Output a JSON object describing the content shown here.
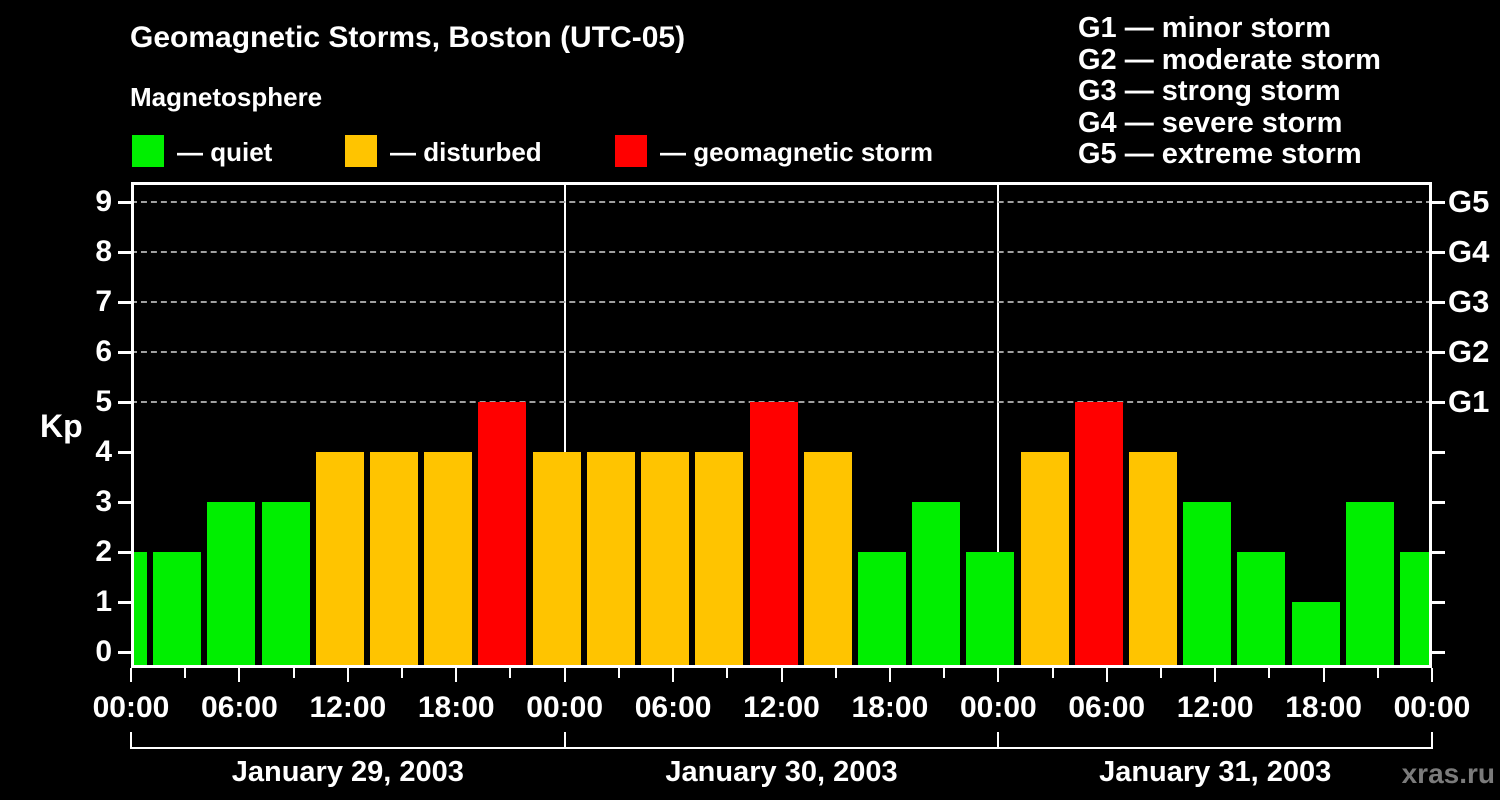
{
  "title": "Geomagnetic Storms, Boston (UTC-05)",
  "subtitle": "Magnetosphere",
  "legend": {
    "items": [
      {
        "name": "quiet",
        "label": "— quiet",
        "color": "#00ef00"
      },
      {
        "name": "disturbed",
        "label": "— disturbed",
        "color": "#ffc400"
      },
      {
        "name": "storm",
        "label": "— geomagnetic storm",
        "color": "#ff0000"
      }
    ]
  },
  "storm_scale": {
    "lines": [
      "G1 — minor storm",
      "G2 — moderate storm",
      "G3 — strong storm",
      "G4 — severe storm",
      "G5 — extreme storm"
    ]
  },
  "watermark": "xras.ru",
  "chart_data": {
    "type": "bar",
    "title": "Geomagnetic Storms, Boston (UTC-05)",
    "ylabel": "Kp",
    "ylim": [
      0,
      9
    ],
    "interval_hours": 3,
    "grid": "dashed horizontal lines at Kp 5-9 only",
    "legend_position": "top",
    "y_ticks": [
      "0",
      "1",
      "2",
      "3",
      "4",
      "5",
      "6",
      "7",
      "8",
      "9"
    ],
    "gridline_levels": [
      5,
      6,
      7,
      8,
      9
    ],
    "g_labels": [
      {
        "label": "G1",
        "kp": 5
      },
      {
        "label": "G2",
        "kp": 6
      },
      {
        "label": "G3",
        "kp": 7
      },
      {
        "label": "G4",
        "kp": 8
      },
      {
        "label": "G5",
        "kp": 9
      }
    ],
    "x_tick_labels": [
      "00:00",
      "06:00",
      "12:00",
      "18:00",
      "00:00",
      "06:00",
      "12:00",
      "18:00",
      "00:00",
      "06:00",
      "12:00",
      "18:00",
      "00:00"
    ],
    "colors": {
      "quiet": "#00ef00",
      "disturbed": "#ffc400",
      "storm": "#ff0000"
    },
    "thresholds": {
      "disturbed_min": 4,
      "storm_min": 5
    },
    "days": [
      {
        "date": "January 29, 2003",
        "times": [
          "00:00",
          "03:00",
          "06:00",
          "09:00",
          "12:00",
          "15:00",
          "18:00",
          "21:00"
        ],
        "kp_values": [
          2,
          2,
          3,
          3,
          4,
          4,
          4,
          5
        ]
      },
      {
        "date": "January 30, 2003",
        "times": [
          "00:00",
          "03:00",
          "06:00",
          "09:00",
          "12:00",
          "15:00",
          "18:00",
          "21:00"
        ],
        "kp_values": [
          4,
          4,
          4,
          4,
          5,
          4,
          2,
          3
        ]
      },
      {
        "date": "January 31, 2003",
        "times": [
          "00:00",
          "03:00",
          "06:00",
          "09:00",
          "12:00",
          "15:00",
          "18:00",
          "21:00"
        ],
        "kp_values": [
          2,
          4,
          5,
          4,
          3,
          2,
          1,
          3
        ]
      }
    ],
    "trailing_bar_kp": 2
  }
}
